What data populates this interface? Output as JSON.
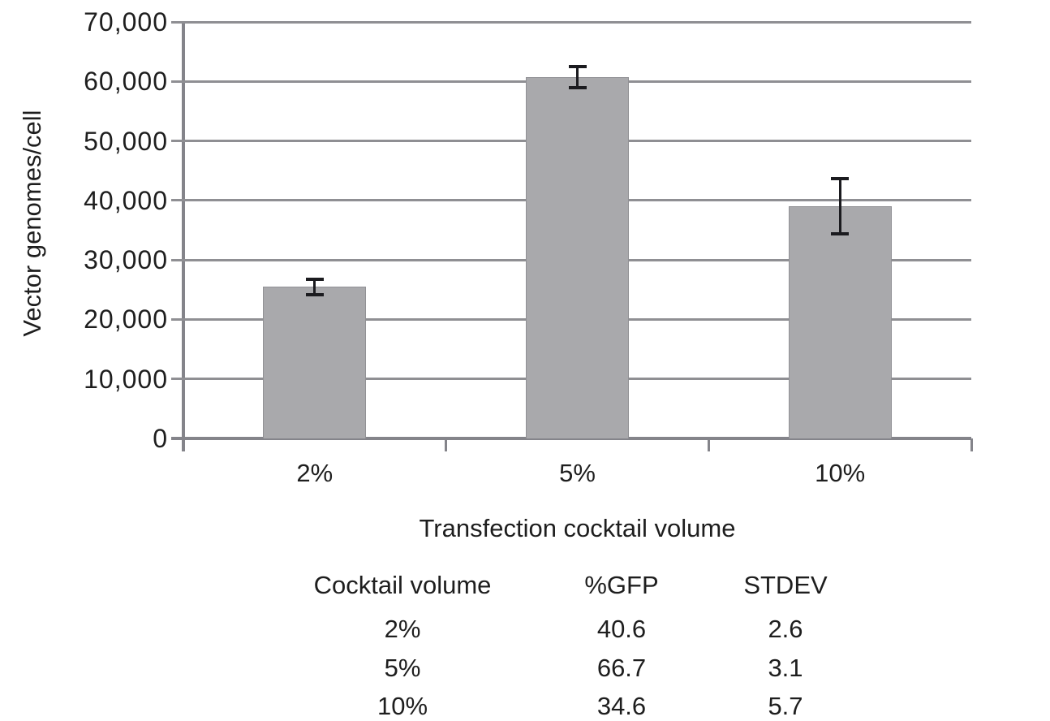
{
  "figure": {
    "background": "#ffffff",
    "text_color": "#1e1e1e"
  },
  "chart_data": {
    "type": "bar",
    "title": "",
    "xlabel": "Transfection cocktail volume",
    "ylabel": "Vector genomes/cell",
    "categories": [
      "2%",
      "5%",
      "10%"
    ],
    "values": [
      25500,
      60700,
      39000
    ],
    "errors": [
      1300,
      1800,
      4600
    ],
    "ylim": [
      0,
      70000
    ],
    "ytick_step": 10000,
    "ytick_labels": [
      "0",
      "10,000",
      "20,000",
      "30,000",
      "40,000",
      "50,000",
      "60,000",
      "70,000"
    ],
    "grid": true,
    "legend": "none",
    "bar_color": "#a9a9ac",
    "bar_border_color": "#919195",
    "gridline_color": "#8f8f93",
    "axis_color": "#84848a",
    "error_bar_color": "#1b1b1f"
  },
  "table": {
    "headers": [
      "Cocktail volume",
      "%GFP",
      "STDEV"
    ],
    "rows": [
      {
        "volume": "2%",
        "gfp": "40.6",
        "stdev": "2.6"
      },
      {
        "volume": "5%",
        "gfp": "66.7",
        "stdev": "3.1"
      },
      {
        "volume": "10%",
        "gfp": "34.6",
        "stdev": "5.7"
      }
    ]
  }
}
